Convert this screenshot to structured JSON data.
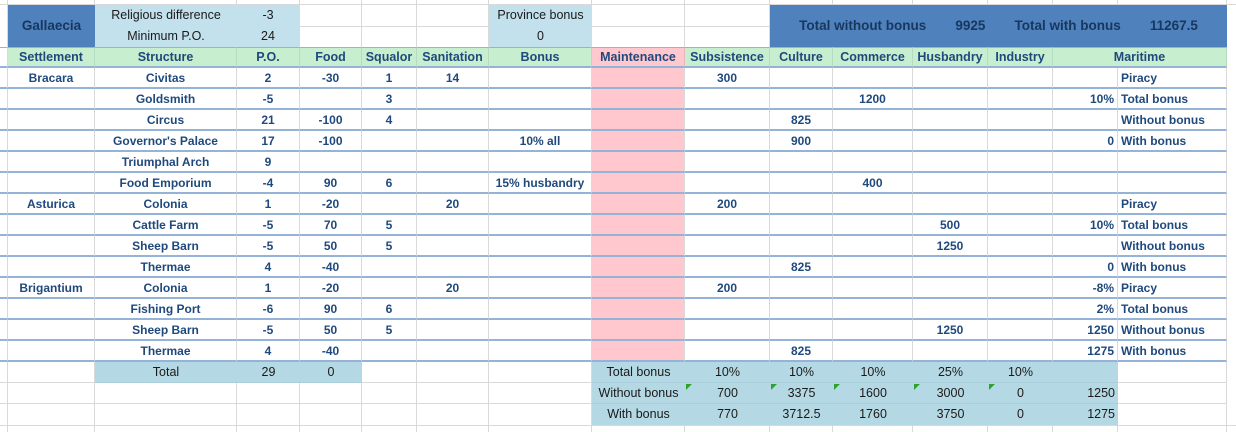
{
  "province_header": {
    "name": "Gallaecia",
    "stats": [
      {
        "label": "Religious difference",
        "value": "-3"
      },
      {
        "label": "Minimum P.O.",
        "value": "24"
      }
    ],
    "province_bonus": {
      "label": "Province bonus",
      "value": "0"
    },
    "totals_banner": {
      "without_label": "Total without bonus",
      "without_value": "9925",
      "with_label": "Total with bonus",
      "with_value": "11267.5"
    }
  },
  "columns": [
    "Settlement",
    "Structure",
    "P.O.",
    "Food",
    "Squalor",
    "Sanitation",
    "Bonus",
    "Maintenance",
    "Subsistence",
    "Culture",
    "Commerce",
    "Husbandry",
    "Industry",
    "Maritime"
  ],
  "rows": [
    {
      "settlement": "Bracara",
      "structure": "Civitas",
      "po": "2",
      "food": "-30",
      "squalor": "1",
      "sanitation": "14",
      "bonus": "",
      "subsistence": "300",
      "culture": "",
      "commerce": "",
      "husbandry": "",
      "industry": "",
      "maritime_value": "",
      "maritime_label": "Piracy"
    },
    {
      "settlement": "",
      "structure": "Goldsmith",
      "po": "-5",
      "food": "",
      "squalor": "3",
      "sanitation": "",
      "bonus": "",
      "subsistence": "",
      "culture": "",
      "commerce": "1200",
      "husbandry": "",
      "industry": "",
      "maritime_value": "10%",
      "maritime_label": "Total bonus"
    },
    {
      "settlement": "",
      "structure": "Circus",
      "po": "21",
      "food": "-100",
      "squalor": "4",
      "sanitation": "",
      "bonus": "",
      "subsistence": "",
      "culture": "825",
      "commerce": "",
      "husbandry": "",
      "industry": "",
      "maritime_value": "",
      "maritime_label": "Without bonus"
    },
    {
      "settlement": "",
      "structure": "Governor's Palace",
      "po": "17",
      "food": "-100",
      "squalor": "",
      "sanitation": "",
      "bonus": "10% all",
      "subsistence": "",
      "culture": "900",
      "commerce": "",
      "husbandry": "",
      "industry": "",
      "maritime_value": "0",
      "maritime_label": "With bonus"
    },
    {
      "settlement": "",
      "structure": "Triumphal Arch",
      "po": "9",
      "food": "",
      "squalor": "",
      "sanitation": "",
      "bonus": "",
      "subsistence": "",
      "culture": "",
      "commerce": "",
      "husbandry": "",
      "industry": "",
      "maritime_value": "",
      "maritime_label": ""
    },
    {
      "settlement": "",
      "structure": "Food Emporium",
      "po": "-4",
      "food": "90",
      "squalor": "6",
      "sanitation": "",
      "bonus": "15% husbandry",
      "subsistence": "",
      "culture": "",
      "commerce": "400",
      "husbandry": "",
      "industry": "",
      "maritime_value": "",
      "maritime_label": ""
    },
    {
      "settlement": "Asturica",
      "structure": "Colonia",
      "po": "1",
      "food": "-20",
      "squalor": "",
      "sanitation": "20",
      "bonus": "",
      "subsistence": "200",
      "culture": "",
      "commerce": "",
      "husbandry": "",
      "industry": "",
      "maritime_value": "",
      "maritime_label": "Piracy"
    },
    {
      "settlement": "",
      "structure": "Cattle Farm",
      "po": "-5",
      "food": "70",
      "squalor": "5",
      "sanitation": "",
      "bonus": "",
      "subsistence": "",
      "culture": "",
      "commerce": "",
      "husbandry": "500",
      "industry": "",
      "maritime_value": "10%",
      "maritime_label": "Total bonus"
    },
    {
      "settlement": "",
      "structure": "Sheep Barn",
      "po": "-5",
      "food": "50",
      "squalor": "5",
      "sanitation": "",
      "bonus": "",
      "subsistence": "",
      "culture": "",
      "commerce": "",
      "husbandry": "1250",
      "industry": "",
      "maritime_value": "",
      "maritime_label": "Without bonus"
    },
    {
      "settlement": "",
      "structure": "Thermae",
      "po": "4",
      "food": "-40",
      "squalor": "",
      "sanitation": "",
      "bonus": "",
      "subsistence": "",
      "culture": "825",
      "commerce": "",
      "husbandry": "",
      "industry": "",
      "maritime_value": "0",
      "maritime_label": "With bonus"
    },
    {
      "settlement": "Brigantium",
      "structure": "Colonia",
      "po": "1",
      "food": "-20",
      "squalor": "",
      "sanitation": "20",
      "bonus": "",
      "subsistence": "200",
      "culture": "",
      "commerce": "",
      "husbandry": "",
      "industry": "",
      "maritime_value": "-8%",
      "maritime_label": "Piracy"
    },
    {
      "settlement": "",
      "structure": "Fishing Port",
      "po": "-6",
      "food": "90",
      "squalor": "6",
      "sanitation": "",
      "bonus": "",
      "subsistence": "",
      "culture": "",
      "commerce": "",
      "husbandry": "",
      "industry": "",
      "maritime_value": "2%",
      "maritime_label": "Total bonus"
    },
    {
      "settlement": "",
      "structure": "Sheep Barn",
      "po": "-5",
      "food": "50",
      "squalor": "5",
      "sanitation": "",
      "bonus": "",
      "subsistence": "",
      "culture": "",
      "commerce": "",
      "husbandry": "1250",
      "industry": "",
      "maritime_value": "1250",
      "maritime_label": "Without bonus"
    },
    {
      "settlement": "",
      "structure": "Thermae",
      "po": "4",
      "food": "-40",
      "squalor": "",
      "sanitation": "",
      "bonus": "",
      "subsistence": "",
      "culture": "825",
      "commerce": "",
      "husbandry": "",
      "industry": "",
      "maritime_value": "1275",
      "maritime_label": "With bonus"
    }
  ],
  "totals": {
    "total": {
      "label": "Total",
      "po": "29",
      "food": "0",
      "bonus_label": "Total bonus",
      "subsistence": "10%",
      "culture": "10%",
      "commerce": "10%",
      "husbandry": "25%",
      "industry": "10%",
      "maritime_value": ""
    },
    "without": {
      "label": "Without bonus",
      "subsistence": "700",
      "culture": "3375",
      "commerce": "1600",
      "husbandry": "3000",
      "industry": "0",
      "maritime_value": "1250"
    },
    "with": {
      "label": "With bonus",
      "subsistence": "770",
      "culture": "3712.5",
      "commerce": "1760",
      "husbandry": "3750",
      "industry": "0",
      "maritime_value": "1275"
    }
  },
  "colors": {
    "banner_blue": "#4F81BD",
    "light_blue": "#C2E1EC",
    "summary_blue": "#B5D9E4",
    "header_green": "#C7EECF",
    "maintenance_pink": "#FFC7CE",
    "row_line_blue": "#95B3D7",
    "grid_line": "#D9D9D9",
    "data_text_blue": "#1F497D",
    "banner_text": "#17375E",
    "indicator_green": "#2FA12F"
  }
}
